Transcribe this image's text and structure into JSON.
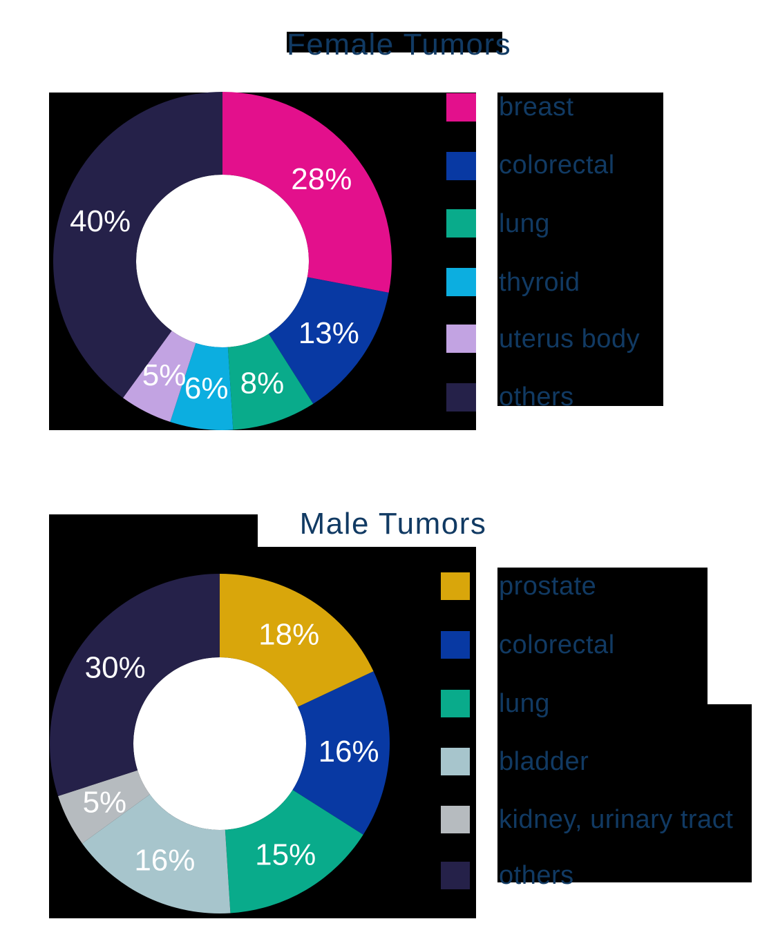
{
  "page": {
    "background": "#FFFFFF",
    "backdrop_color": "#000000",
    "text_color": "#113A63",
    "data_label_color": "#FFFFFF"
  },
  "chart_data": [
    {
      "type": "pie",
      "variant": "donut",
      "title": "Female Tumors",
      "labels": [
        "breast",
        "colorectal",
        "lung",
        "thyroid",
        "uterus body",
        "others"
      ],
      "values": [
        28,
        13,
        8,
        6,
        5,
        40
      ],
      "data_labels": [
        "28%",
        "13%",
        "8%",
        "6%",
        "5%",
        "40%"
      ],
      "colors": [
        "#E3108C",
        "#0839A3",
        "#09AB8B",
        "#0CAEE0",
        "#C2A3E2",
        "#252149"
      ],
      "start_angle_deg": 0,
      "direction": "clockwise",
      "legend_position": "right",
      "hole_color": "#FFFFFF"
    },
    {
      "type": "pie",
      "variant": "donut",
      "title": "Male Tumors",
      "labels": [
        "prostate",
        "colorectal",
        "lung",
        "bladder",
        "kidney, urinary tract",
        "others"
      ],
      "values": [
        18,
        16,
        15,
        16,
        5,
        30
      ],
      "data_labels": [
        "18%",
        "16%",
        "15%",
        "16%",
        "5%",
        "30%"
      ],
      "colors": [
        "#D9A60B",
        "#0839A3",
        "#09AB8B",
        "#A7C5CC",
        "#B6BBBF",
        "#252149"
      ],
      "start_angle_deg": 0,
      "direction": "clockwise",
      "legend_position": "right",
      "hole_color": "#FFFFFF"
    }
  ]
}
